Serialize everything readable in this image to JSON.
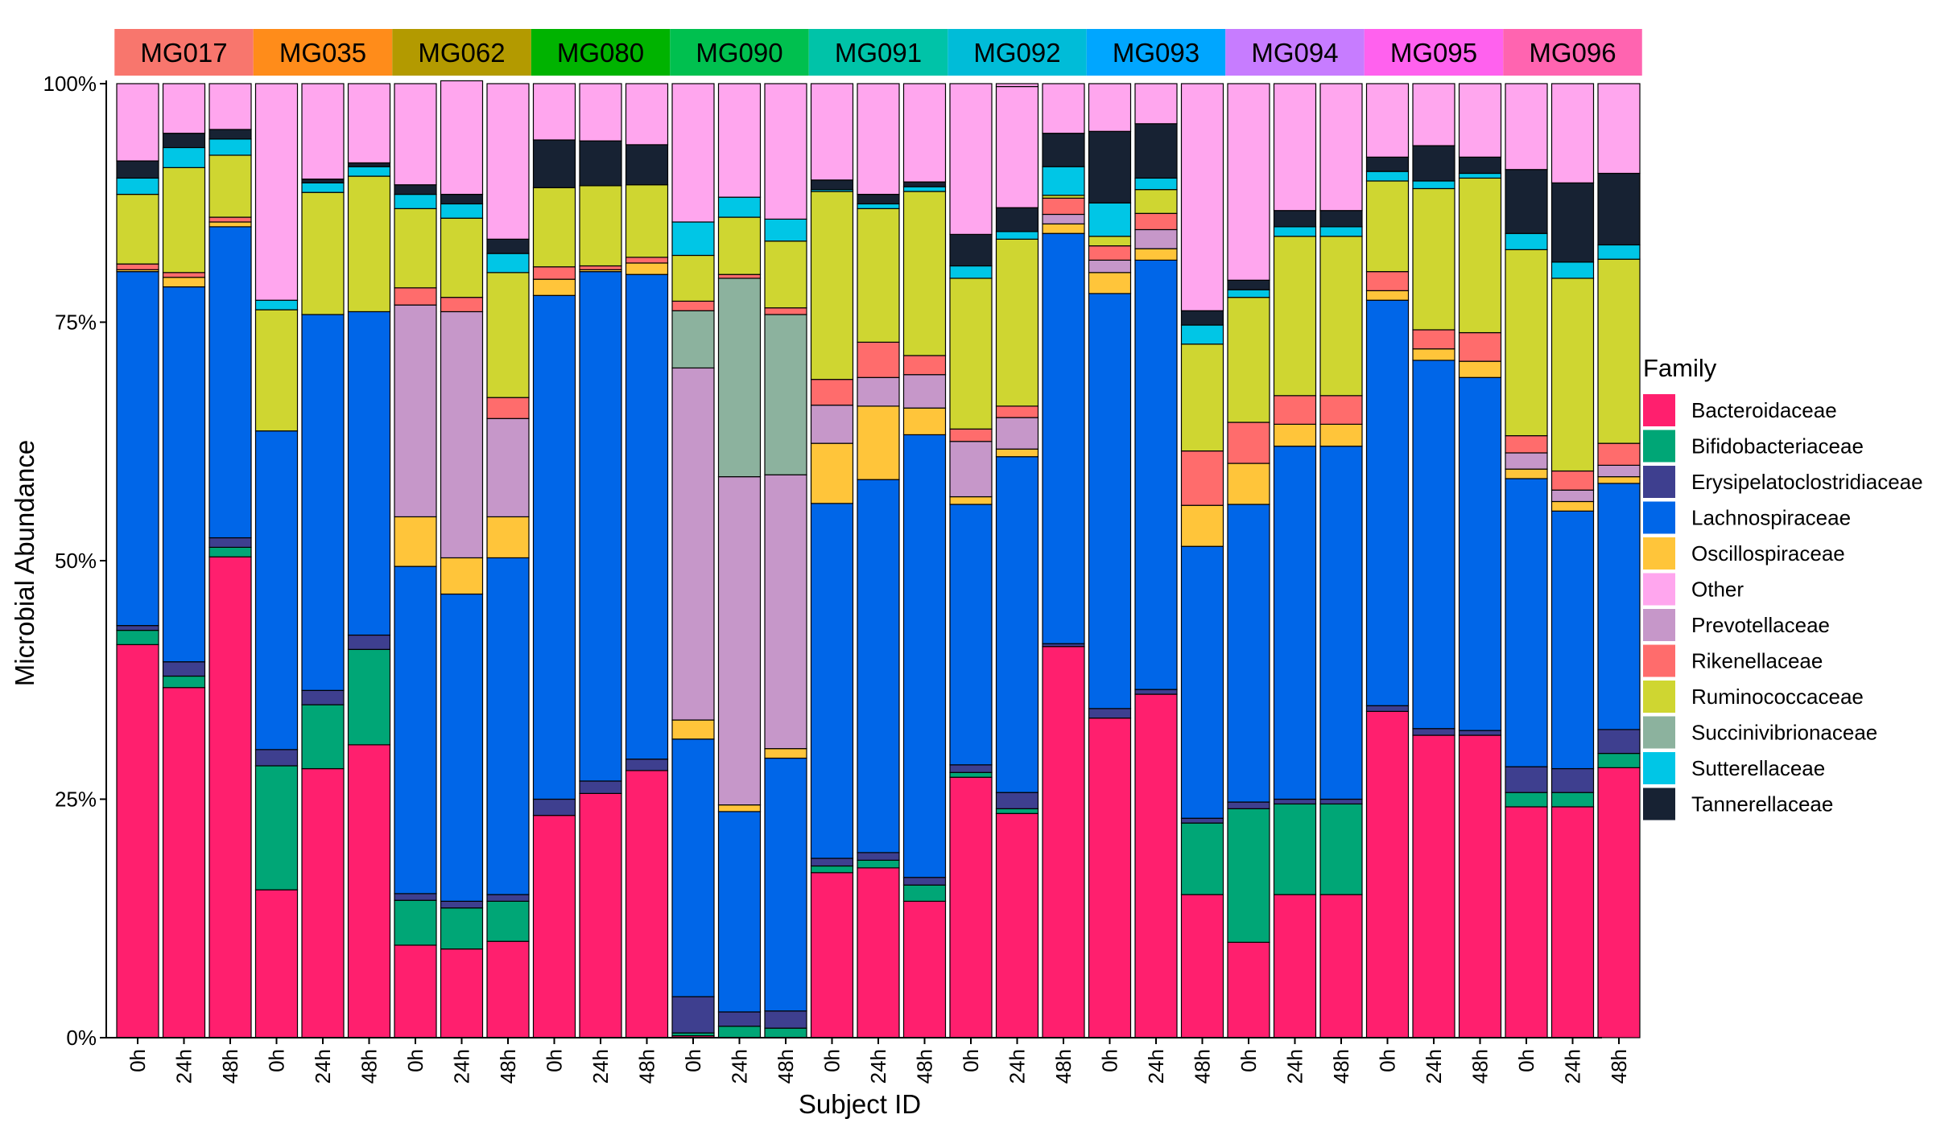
{
  "chart_data": {
    "type": "bar",
    "stacked": true,
    "xlabel": "Subject ID",
    "ylabel": "Microbial Abundance",
    "ylim": [
      0,
      1
    ],
    "y_ticks": [
      0,
      0.25,
      0.5,
      0.75,
      1
    ],
    "y_tick_labels": [
      "0%",
      "25%",
      "50%",
      "75%",
      "100%"
    ],
    "legend": {
      "title": "Family",
      "placement": "right",
      "entries": [
        {
          "name": "Bacteroidaceae",
          "color": "#FF1F6E"
        },
        {
          "name": "Bifidobacteriaceae",
          "color": "#00A676"
        },
        {
          "name": "Erysipelatoclostridiaceae",
          "color": "#3E3F8F"
        },
        {
          "name": "Lachnospiraceae",
          "color": "#0066E8"
        },
        {
          "name": "Oscillospiraceae",
          "color": "#FFC53A"
        },
        {
          "name": "Other",
          "color": "#FFA6EE"
        },
        {
          "name": "Prevotellaceae",
          "color": "#C697C9"
        },
        {
          "name": "Rikenellaceae",
          "color": "#FF6C6C"
        },
        {
          "name": "Ruminococcaceae",
          "color": "#CFD631"
        },
        {
          "name": "Succinivibrionaceae",
          "color": "#8CB29E"
        },
        {
          "name": "Sutterellaceae",
          "color": "#00C6E6"
        },
        {
          "name": "Tannerellaceae",
          "color": "#172233"
        }
      ]
    },
    "stack_order": [
      "Bacteroidaceae",
      "Bifidobacteriaceae",
      "Erysipelatoclostridiaceae",
      "Lachnospiraceae",
      "Oscillospiraceae",
      "Prevotellaceae",
      "Succinivibrionaceae",
      "Rikenellaceae",
      "Ruminococcaceae",
      "Sutterellaceae",
      "Tannerellaceae",
      "Other"
    ],
    "timepoints": [
      "0h",
      "24h",
      "48h"
    ],
    "subjects": [
      {
        "name": "MG017",
        "color": "#F8766D",
        "bars": [
          {
            "Bacteroidaceae": 0.412,
            "Bifidobacteriaceae": 0.015,
            "Erysipelatoclostridiaceae": 0.005,
            "Lachnospiraceae": 0.371,
            "Oscillospiraceae": 0.002,
            "Prevotellaceae": 0,
            "Succinivibrionaceae": 0,
            "Rikenellaceae": 0.006,
            "Ruminococcaceae": 0.073,
            "Sutterellaceae": 0.017,
            "Tannerellaceae": 0.018,
            "Other": 0.081
          },
          {
            "Bacteroidaceae": 0.367,
            "Bifidobacteriaceae": 0.012,
            "Erysipelatoclostridiaceae": 0.015,
            "Lachnospiraceae": 0.393,
            "Oscillospiraceae": 0.01,
            "Prevotellaceae": 0,
            "Succinivibrionaceae": 0,
            "Rikenellaceae": 0.005,
            "Ruminococcaceae": 0.11,
            "Sutterellaceae": 0.021,
            "Tannerellaceae": 0.015,
            "Other": 0.052
          },
          {
            "Bacteroidaceae": 0.504,
            "Bifidobacteriaceae": 0.01,
            "Erysipelatoclostridiaceae": 0.01,
            "Lachnospiraceae": 0.326,
            "Oscillospiraceae": 0.005,
            "Prevotellaceae": 0,
            "Succinivibrionaceae": 0,
            "Rikenellaceae": 0.005,
            "Ruminococcaceae": 0.065,
            "Sutterellaceae": 0.017,
            "Tannerellaceae": 0.01,
            "Other": 0.048
          }
        ]
      },
      {
        "name": "MG035",
        "color": "#FF8C1A",
        "bars": [
          {
            "Bacteroidaceae": 0.155,
            "Bifidobacteriaceae": 0.13,
            "Erysipelatoclostridiaceae": 0.017,
            "Lachnospiraceae": 0.334,
            "Oscillospiraceae": 0,
            "Prevotellaceae": 0,
            "Succinivibrionaceae": 0,
            "Rikenellaceae": 0,
            "Ruminococcaceae": 0.127,
            "Sutterellaceae": 0.01,
            "Tannerellaceae": 0,
            "Other": 0.227
          },
          {
            "Bacteroidaceae": 0.282,
            "Bifidobacteriaceae": 0.067,
            "Erysipelatoclostridiaceae": 0.015,
            "Lachnospiraceae": 0.394,
            "Oscillospiraceae": 0,
            "Prevotellaceae": 0,
            "Succinivibrionaceae": 0,
            "Rikenellaceae": 0,
            "Ruminococcaceae": 0.128,
            "Sutterellaceae": 0.01,
            "Tannerellaceae": 0.004,
            "Other": 0.1
          },
          {
            "Bacteroidaceae": 0.307,
            "Bifidobacteriaceae": 0.1,
            "Erysipelatoclostridiaceae": 0.015,
            "Lachnospiraceae": 0.339,
            "Oscillospiraceae": 0,
            "Prevotellaceae": 0,
            "Succinivibrionaceae": 0,
            "Rikenellaceae": 0,
            "Ruminococcaceae": 0.142,
            "Sutterellaceae": 0.01,
            "Tannerellaceae": 0.004,
            "Other": 0.083
          }
        ]
      },
      {
        "name": "MG062",
        "color": "#B39A00",
        "bars": [
          {
            "Bacteroidaceae": 0.097,
            "Bifidobacteriaceae": 0.047,
            "Erysipelatoclostridiaceae": 0.007,
            "Lachnospiraceae": 0.343,
            "Oscillospiraceae": 0.052,
            "Prevotellaceae": 0.222,
            "Succinivibrionaceae": 0,
            "Rikenellaceae": 0.018,
            "Ruminococcaceae": 0.083,
            "Sutterellaceae": 0.015,
            "Tannerellaceae": 0.01,
            "Other": 0.106
          },
          {
            "Bacteroidaceae": 0.093,
            "Bifidobacteriaceae": 0.043,
            "Erysipelatoclostridiaceae": 0.007,
            "Lachnospiraceae": 0.322,
            "Oscillospiraceae": 0.038,
            "Prevotellaceae": 0.258,
            "Succinivibrionaceae": 0,
            "Rikenellaceae": 0.015,
            "Ruminococcaceae": 0.083,
            "Sutterellaceae": 0.015,
            "Tannerellaceae": 0.01,
            "Other": 0.119
          },
          {
            "Bacteroidaceae": 0.101,
            "Bifidobacteriaceae": 0.042,
            "Erysipelatoclostridiaceae": 0.007,
            "Lachnospiraceae": 0.353,
            "Oscillospiraceae": 0.043,
            "Prevotellaceae": 0.103,
            "Succinivibrionaceae": 0,
            "Rikenellaceae": 0.022,
            "Ruminococcaceae": 0.131,
            "Sutterellaceae": 0.02,
            "Tannerellaceae": 0.015,
            "Other": 0.163
          }
        ]
      },
      {
        "name": "MG080",
        "color": "#00B300",
        "bars": [
          {
            "Bacteroidaceae": 0.233,
            "Bifidobacteriaceae": 0,
            "Erysipelatoclostridiaceae": 0.017,
            "Lachnospiraceae": 0.528,
            "Oscillospiraceae": 0.017,
            "Prevotellaceae": 0,
            "Succinivibrionaceae": 0,
            "Rikenellaceae": 0.013,
            "Ruminococcaceae": 0.083,
            "Sutterellaceae": 0,
            "Tannerellaceae": 0.05,
            "Other": 0.059
          },
          {
            "Bacteroidaceae": 0.256,
            "Bifidobacteriaceae": 0,
            "Erysipelatoclostridiaceae": 0.013,
            "Lachnospiraceae": 0.534,
            "Oscillospiraceae": 0.002,
            "Prevotellaceae": 0,
            "Succinivibrionaceae": 0,
            "Rikenellaceae": 0.004,
            "Ruminococcaceae": 0.084,
            "Sutterellaceae": 0,
            "Tannerellaceae": 0.047,
            "Other": 0.06
          },
          {
            "Bacteroidaceae": 0.28,
            "Bifidobacteriaceae": 0,
            "Erysipelatoclostridiaceae": 0.012,
            "Lachnospiraceae": 0.508,
            "Oscillospiraceae": 0.012,
            "Prevotellaceae": 0,
            "Succinivibrionaceae": 0,
            "Rikenellaceae": 0.006,
            "Ruminococcaceae": 0.076,
            "Sutterellaceae": 0,
            "Tannerellaceae": 0.042,
            "Other": 0.064
          }
        ]
      },
      {
        "name": "MG090",
        "color": "#00C04F",
        "bars": [
          {
            "Bacteroidaceae": 0.002,
            "Bifidobacteriaceae": 0.003,
            "Erysipelatoclostridiaceae": 0.038,
            "Lachnospiraceae": 0.27,
            "Oscillospiraceae": 0.02,
            "Prevotellaceae": 0.369,
            "Succinivibrionaceae": 0.06,
            "Rikenellaceae": 0.01,
            "Ruminococcaceae": 0.048,
            "Sutterellaceae": 0.035,
            "Tannerellaceae": 0,
            "Other": 0.145
          },
          {
            "Bacteroidaceae": 0,
            "Bifidobacteriaceae": 0.012,
            "Erysipelatoclostridiaceae": 0.015,
            "Lachnospiraceae": 0.21,
            "Oscillospiraceae": 0.007,
            "Prevotellaceae": 0.344,
            "Succinivibrionaceae": 0.208,
            "Rikenellaceae": 0.004,
            "Ruminococcaceae": 0.06,
            "Sutterellaceae": 0.021,
            "Tannerellaceae": 0,
            "Other": 0.119
          },
          {
            "Bacteroidaceae": 0,
            "Bifidobacteriaceae": 0.01,
            "Erysipelatoclostridiaceae": 0.018,
            "Lachnospiraceae": 0.265,
            "Oscillospiraceae": 0.01,
            "Prevotellaceae": 0.287,
            "Succinivibrionaceae": 0.168,
            "Rikenellaceae": 0.007,
            "Ruminococcaceae": 0.07,
            "Sutterellaceae": 0.023,
            "Tannerellaceae": 0,
            "Other": 0.142
          }
        ]
      },
      {
        "name": "MG091",
        "color": "#00C3A8",
        "bars": [
          {
            "Bacteroidaceae": 0.173,
            "Bifidobacteriaceae": 0.007,
            "Erysipelatoclostridiaceae": 0.008,
            "Lachnospiraceae": 0.372,
            "Oscillospiraceae": 0.063,
            "Prevotellaceae": 0.04,
            "Succinivibrionaceae": 0,
            "Rikenellaceae": 0.027,
            "Ruminococcaceae": 0.197,
            "Sutterellaceae": 0.002,
            "Tannerellaceae": 0.01,
            "Other": 0.101
          },
          {
            "Bacteroidaceae": 0.178,
            "Bifidobacteriaceae": 0.008,
            "Erysipelatoclostridiaceae": 0.008,
            "Lachnospiraceae": 0.391,
            "Oscillospiraceae": 0.077,
            "Prevotellaceae": 0.03,
            "Succinivibrionaceae": 0,
            "Rikenellaceae": 0.037,
            "Ruminococcaceae": 0.14,
            "Sutterellaceae": 0.005,
            "Tannerellaceae": 0.01,
            "Other": 0.116
          },
          {
            "Bacteroidaceae": 0.143,
            "Bifidobacteriaceae": 0.017,
            "Erysipelatoclostridiaceae": 0.008,
            "Lachnospiraceae": 0.464,
            "Oscillospiraceae": 0.028,
            "Prevotellaceae": 0.035,
            "Succinivibrionaceae": 0,
            "Rikenellaceae": 0.02,
            "Ruminococcaceae": 0.172,
            "Sutterellaceae": 0.005,
            "Tannerellaceae": 0.005,
            "Other": 0.103
          }
        ]
      },
      {
        "name": "MG092",
        "color": "#00BCD8",
        "bars": [
          {
            "Bacteroidaceae": 0.273,
            "Bifidobacteriaceae": 0.005,
            "Erysipelatoclostridiaceae": 0.008,
            "Lachnospiraceae": 0.273,
            "Oscillospiraceae": 0.008,
            "Prevotellaceae": 0.058,
            "Succinivibrionaceae": 0,
            "Rikenellaceae": 0.013,
            "Ruminococcaceae": 0.158,
            "Sutterellaceae": 0.013,
            "Tannerellaceae": 0.033,
            "Other": 0.158
          },
          {
            "Bacteroidaceae": 0.235,
            "Bifidobacteriaceae": 0.005,
            "Erysipelatoclostridiaceae": 0.017,
            "Lachnospiraceae": 0.352,
            "Oscillospiraceae": 0.008,
            "Prevotellaceae": 0.033,
            "Succinivibrionaceae": 0,
            "Rikenellaceae": 0.012,
            "Ruminococcaceae": 0.175,
            "Sutterellaceae": 0.008,
            "Tannerellaceae": 0.025,
            "Other": 0.127
          },
          {
            "Bacteroidaceae": 0.41,
            "Bifidobacteriaceae": 0,
            "Erysipelatoclostridiaceae": 0.003,
            "Lachnospiraceae": 0.43,
            "Oscillospiraceae": 0.01,
            "Prevotellaceae": 0.01,
            "Succinivibrionaceae": 0,
            "Rikenellaceae": 0.017,
            "Ruminococcaceae": 0.003,
            "Sutterellaceae": 0.03,
            "Tannerellaceae": 0.035,
            "Other": 0.052
          }
        ]
      },
      {
        "name": "MG093",
        "color": "#00A6FF",
        "bars": [
          {
            "Bacteroidaceae": 0.335,
            "Bifidobacteriaceae": 0,
            "Erysipelatoclostridiaceae": 0.01,
            "Lachnospiraceae": 0.435,
            "Oscillospiraceae": 0.022,
            "Prevotellaceae": 0.013,
            "Succinivibrionaceae": 0,
            "Rikenellaceae": 0.015,
            "Ruminococcaceae": 0.01,
            "Sutterellaceae": 0.035,
            "Tannerellaceae": 0.075,
            "Other": 0.05
          },
          {
            "Bacteroidaceae": 0.36,
            "Bifidobacteriaceae": 0,
            "Erysipelatoclostridiaceae": 0.005,
            "Lachnospiraceae": 0.45,
            "Oscillospiraceae": 0.012,
            "Prevotellaceae": 0.02,
            "Succinivibrionaceae": 0,
            "Rikenellaceae": 0.017,
            "Ruminococcaceae": 0.025,
            "Sutterellaceae": 0.012,
            "Tannerellaceae": 0.057,
            "Other": 0.042
          },
          {
            "Bacteroidaceae": 0.15,
            "Bifidobacteriaceae": 0.075,
            "Erysipelatoclostridiaceae": 0.005,
            "Lachnospiraceae": 0.285,
            "Oscillospiraceae": 0.043,
            "Prevotellaceae": 0,
            "Succinivibrionaceae": 0,
            "Rikenellaceae": 0.057,
            "Ruminococcaceae": 0.112,
            "Sutterellaceae": 0.02,
            "Tannerellaceae": 0.015,
            "Other": 0.238
          }
        ]
      },
      {
        "name": "MG094",
        "color": "#C77CFF",
        "bars": [
          {
            "Bacteroidaceae": 0.1,
            "Bifidobacteriaceae": 0.14,
            "Erysipelatoclostridiaceae": 0.007,
            "Lachnospiraceae": 0.312,
            "Oscillospiraceae": 0.043,
            "Prevotellaceae": 0,
            "Succinivibrionaceae": 0,
            "Rikenellaceae": 0.043,
            "Ruminococcaceae": 0.131,
            "Sutterellaceae": 0.008,
            "Tannerellaceae": 0.01,
            "Other": 0.206
          },
          {
            "Bacteroidaceae": 0.15,
            "Bifidobacteriaceae": 0.095,
            "Erysipelatoclostridiaceae": 0.005,
            "Lachnospiraceae": 0.37,
            "Oscillospiraceae": 0.023,
            "Prevotellaceae": 0,
            "Succinivibrionaceae": 0,
            "Rikenellaceae": 0.03,
            "Ruminococcaceae": 0.167,
            "Sutterellaceae": 0.01,
            "Tannerellaceae": 0.017,
            "Other": 0.133
          },
          {
            "Bacteroidaceae": 0.15,
            "Bifidobacteriaceae": 0.095,
            "Erysipelatoclostridiaceae": 0.005,
            "Lachnospiraceae": 0.37,
            "Oscillospiraceae": 0.023,
            "Prevotellaceae": 0,
            "Succinivibrionaceae": 0,
            "Rikenellaceae": 0.03,
            "Ruminococcaceae": 0.167,
            "Sutterellaceae": 0.01,
            "Tannerellaceae": 0.017,
            "Other": 0.133
          }
        ]
      },
      {
        "name": "MG095",
        "color": "#FF61EE",
        "bars": [
          {
            "Bacteroidaceae": 0.342,
            "Bifidobacteriaceae": 0,
            "Erysipelatoclostridiaceae": 0.006,
            "Lachnospiraceae": 0.425,
            "Oscillospiraceae": 0.01,
            "Prevotellaceae": 0,
            "Succinivibrionaceae": 0,
            "Rikenellaceae": 0.02,
            "Ruminococcaceae": 0.095,
            "Sutterellaceae": 0.01,
            "Tannerellaceae": 0.015,
            "Other": 0.077
          },
          {
            "Bacteroidaceae": 0.317,
            "Bifidobacteriaceae": 0,
            "Erysipelatoclostridiaceae": 0.007,
            "Lachnospiraceae": 0.386,
            "Oscillospiraceae": 0.012,
            "Prevotellaceae": 0,
            "Succinivibrionaceae": 0,
            "Rikenellaceae": 0.02,
            "Ruminococcaceae": 0.148,
            "Sutterellaceae": 0.008,
            "Tannerellaceae": 0.037,
            "Other": 0.065
          },
          {
            "Bacteroidaceae": 0.317,
            "Bifidobacteriaceae": 0,
            "Erysipelatoclostridiaceae": 0.005,
            "Lachnospiraceae": 0.37,
            "Oscillospiraceae": 0.017,
            "Prevotellaceae": 0,
            "Succinivibrionaceae": 0,
            "Rikenellaceae": 0.03,
            "Ruminococcaceae": 0.162,
            "Sutterellaceae": 0.005,
            "Tannerellaceae": 0.017,
            "Other": 0.077
          }
        ]
      },
      {
        "name": "MG096",
        "color": "#FF64B0",
        "bars": [
          {
            "Bacteroidaceae": 0.242,
            "Bifidobacteriaceae": 0.015,
            "Erysipelatoclostridiaceae": 0.027,
            "Lachnospiraceae": 0.302,
            "Oscillospiraceae": 0.01,
            "Prevotellaceae": 0.017,
            "Succinivibrionaceae": 0,
            "Rikenellaceae": 0.018,
            "Ruminococcaceae": 0.195,
            "Sutterellaceae": 0.017,
            "Tannerellaceae": 0.067,
            "Other": 0.09
          },
          {
            "Bacteroidaceae": 0.242,
            "Bifidobacteriaceae": 0.015,
            "Erysipelatoclostridiaceae": 0.025,
            "Lachnospiraceae": 0.27,
            "Oscillospiraceae": 0.01,
            "Prevotellaceae": 0.012,
            "Succinivibrionaceae": 0,
            "Rikenellaceae": 0.02,
            "Ruminococcaceae": 0.202,
            "Sutterellaceae": 0.017,
            "Tannerellaceae": 0.083,
            "Other": 0.104
          },
          {
            "Bacteroidaceae": 0.283,
            "Bifidobacteriaceae": 0.015,
            "Erysipelatoclostridiaceae": 0.025,
            "Lachnospiraceae": 0.258,
            "Oscillospiraceae": 0.007,
            "Prevotellaceae": 0.012,
            "Succinivibrionaceae": 0,
            "Rikenellaceae": 0.023,
            "Ruminococcaceae": 0.193,
            "Sutterellaceae": 0.015,
            "Tannerellaceae": 0.075,
            "Other": 0.094
          }
        ]
      }
    ]
  }
}
